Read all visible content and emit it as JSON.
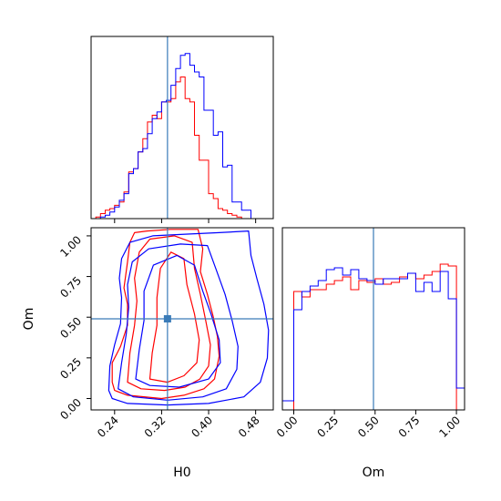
{
  "chart_data": {
    "type": "corner",
    "parameters": [
      "H0",
      "Om"
    ],
    "truth": {
      "H0": 0.33,
      "Om": 0.49
    },
    "colors": {
      "red": "#ff0000",
      "blue": "#0000ff",
      "truth": "#3a7bb8"
    },
    "axes": {
      "h0": {
        "label": "H0",
        "lim": [
          0.2,
          0.51
        ],
        "ticks": [
          0.24,
          0.32,
          0.4,
          0.48
        ],
        "tick_labels": [
          "0.24",
          "0.32",
          "0.40",
          "0.48"
        ]
      },
      "om": {
        "label": "Om",
        "lim": [
          -0.07,
          1.05
        ],
        "ticks": [
          0.0,
          0.25,
          0.5,
          0.75,
          1.0
        ],
        "tick_labels": [
          "0.00",
          "0.25",
          "0.50",
          "0.75",
          "1.00"
        ]
      }
    },
    "hist_h0": {
      "bin_edges": [
        0.2,
        0.208,
        0.216,
        0.224,
        0.232,
        0.24,
        0.248,
        0.256,
        0.264,
        0.272,
        0.28,
        0.288,
        0.296,
        0.304,
        0.312,
        0.32,
        0.328,
        0.336,
        0.344,
        0.352,
        0.36,
        0.368,
        0.376,
        0.384,
        0.392,
        0.4,
        0.408,
        0.416,
        0.424,
        0.432,
        0.44,
        0.448,
        0.456,
        0.464,
        0.472,
        0.48,
        0.488,
        0.496
      ],
      "red": [
        0,
        1,
        3,
        5,
        6,
        8,
        10,
        16,
        28,
        30,
        40,
        48,
        58,
        62,
        60,
        70,
        70,
        72,
        82,
        85,
        72,
        70,
        50,
        35,
        35,
        15,
        12,
        6,
        5,
        3,
        2,
        1,
        0,
        0,
        0,
        0,
        0
      ],
      "blue": [
        0,
        0,
        1,
        2,
        4,
        7,
        11,
        15,
        27,
        30,
        40,
        42,
        51,
        60,
        64,
        70,
        71,
        80,
        90,
        98,
        99,
        92,
        88,
        85,
        65,
        65,
        50,
        52,
        31,
        32,
        10,
        10,
        5,
        5,
        0,
        0,
        0
      ]
    },
    "hist_om": {
      "bin_edges": [
        -0.07,
        0.0,
        0.05,
        0.1,
        0.15,
        0.2,
        0.25,
        0.3,
        0.35,
        0.4,
        0.45,
        0.5,
        0.55,
        0.6,
        0.65,
        0.7,
        0.75,
        0.8,
        0.85,
        0.9,
        0.95,
        1.0,
        1.05
      ],
      "red": [
        0,
        65,
        62,
        66,
        66,
        69,
        71,
        73,
        66,
        71,
        70,
        72,
        69,
        70,
        73,
        75,
        72,
        74,
        76,
        80,
        79,
        0
      ],
      "blue": [
        5,
        55,
        65,
        68,
        71,
        77,
        78,
        74,
        77,
        72,
        71,
        69,
        72,
        72,
        72,
        75,
        65,
        70,
        65,
        76,
        61,
        12
      ]
    },
    "contours_2d": {
      "red": [
        [
          [
            0.236,
            0.1
          ],
          [
            0.236,
            0.22
          ],
          [
            0.25,
            0.32
          ],
          [
            0.262,
            0.45
          ],
          [
            0.262,
            0.58
          ],
          [
            0.256,
            0.68
          ],
          [
            0.262,
            0.84
          ],
          [
            0.266,
            0.96
          ],
          [
            0.274,
            1.02
          ],
          [
            0.295,
            1.03
          ],
          [
            0.335,
            1.04
          ],
          [
            0.382,
            1.04
          ],
          [
            0.39,
            0.92
          ],
          [
            0.386,
            0.78
          ],
          [
            0.398,
            0.64
          ],
          [
            0.408,
            0.5
          ],
          [
            0.415,
            0.38
          ],
          [
            0.418,
            0.26
          ],
          [
            0.41,
            0.12
          ],
          [
            0.392,
            0.06
          ],
          [
            0.358,
            0.02
          ],
          [
            0.32,
            0.0
          ],
          [
            0.262,
            0.02
          ],
          [
            0.24,
            0.05
          ],
          [
            0.236,
            0.1
          ]
        ],
        [
          [
            0.262,
            0.1
          ],
          [
            0.266,
            0.28
          ],
          [
            0.274,
            0.45
          ],
          [
            0.278,
            0.6
          ],
          [
            0.274,
            0.74
          ],
          [
            0.282,
            0.9
          ],
          [
            0.3,
            0.98
          ],
          [
            0.342,
            1.0
          ],
          [
            0.372,
            0.96
          ],
          [
            0.376,
            0.8
          ],
          [
            0.386,
            0.64
          ],
          [
            0.395,
            0.48
          ],
          [
            0.403,
            0.33
          ],
          [
            0.4,
            0.2
          ],
          [
            0.385,
            0.12
          ],
          [
            0.36,
            0.07
          ],
          [
            0.325,
            0.05
          ],
          [
            0.285,
            0.06
          ],
          [
            0.262,
            0.1
          ]
        ],
        [
          [
            0.3,
            0.12
          ],
          [
            0.304,
            0.28
          ],
          [
            0.312,
            0.45
          ],
          [
            0.312,
            0.62
          ],
          [
            0.318,
            0.8
          ],
          [
            0.336,
            0.9
          ],
          [
            0.358,
            0.86
          ],
          [
            0.363,
            0.7
          ],
          [
            0.376,
            0.52
          ],
          [
            0.384,
            0.36
          ],
          [
            0.38,
            0.22
          ],
          [
            0.358,
            0.14
          ],
          [
            0.33,
            0.1
          ],
          [
            0.3,
            0.12
          ]
        ]
      ],
      "blue": [
        [
          [
            0.23,
            0.05
          ],
          [
            0.232,
            0.2
          ],
          [
            0.24,
            0.33
          ],
          [
            0.25,
            0.46
          ],
          [
            0.252,
            0.62
          ],
          [
            0.248,
            0.74
          ],
          [
            0.252,
            0.86
          ],
          [
            0.266,
            0.96
          ],
          [
            0.305,
            1.0
          ],
          [
            0.36,
            1.01
          ],
          [
            0.418,
            1.02
          ],
          [
            0.468,
            1.03
          ],
          [
            0.472,
            0.88
          ],
          [
            0.482,
            0.74
          ],
          [
            0.494,
            0.58
          ],
          [
            0.502,
            0.42
          ],
          [
            0.5,
            0.25
          ],
          [
            0.488,
            0.1
          ],
          [
            0.46,
            0.01
          ],
          [
            0.4,
            -0.03
          ],
          [
            0.33,
            -0.04
          ],
          [
            0.262,
            -0.03
          ],
          [
            0.236,
            0.0
          ],
          [
            0.23,
            0.05
          ]
        ],
        [
          [
            0.246,
            0.06
          ],
          [
            0.252,
            0.22
          ],
          [
            0.26,
            0.4
          ],
          [
            0.264,
            0.56
          ],
          [
            0.262,
            0.7
          ],
          [
            0.27,
            0.84
          ],
          [
            0.298,
            0.92
          ],
          [
            0.352,
            0.95
          ],
          [
            0.398,
            0.94
          ],
          [
            0.412,
            0.8
          ],
          [
            0.428,
            0.64
          ],
          [
            0.44,
            0.48
          ],
          [
            0.45,
            0.32
          ],
          [
            0.448,
            0.18
          ],
          [
            0.43,
            0.06
          ],
          [
            0.39,
            0.01
          ],
          [
            0.33,
            -0.01
          ],
          [
            0.272,
            0.01
          ],
          [
            0.246,
            0.06
          ]
        ],
        [
          [
            0.276,
            0.12
          ],
          [
            0.282,
            0.3
          ],
          [
            0.29,
            0.48
          ],
          [
            0.29,
            0.66
          ],
          [
            0.306,
            0.82
          ],
          [
            0.346,
            0.88
          ],
          [
            0.376,
            0.82
          ],
          [
            0.39,
            0.66
          ],
          [
            0.404,
            0.52
          ],
          [
            0.418,
            0.36
          ],
          [
            0.42,
            0.22
          ],
          [
            0.4,
            0.12
          ],
          [
            0.35,
            0.07
          ],
          [
            0.3,
            0.08
          ],
          [
            0.276,
            0.12
          ]
        ]
      ]
    }
  }
}
